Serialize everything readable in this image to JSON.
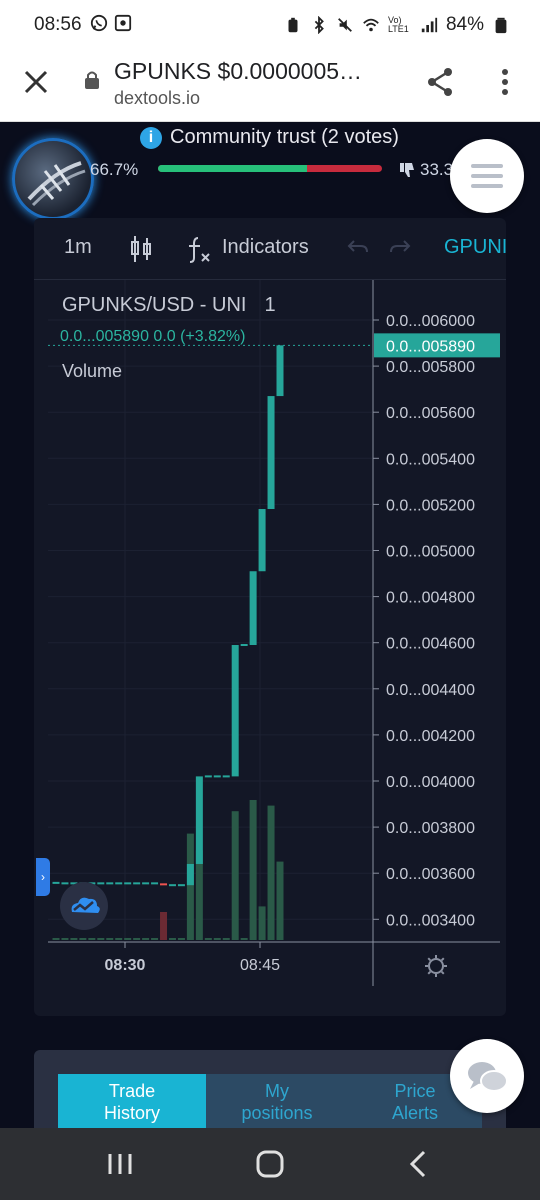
{
  "status_bar": {
    "time": "08:56",
    "battery": "84%",
    "left_icons": [
      "whatsapp-icon",
      "app-square-icon"
    ],
    "right_icons": [
      "notification-icon",
      "bluetooth-icon",
      "mute-icon",
      "wifi-icon",
      "volte-icon",
      "signal-icon",
      "battery-icon"
    ],
    "volte_label": "Vo) LTE1"
  },
  "browser": {
    "page_title": "GPUNKS $0.0000005…",
    "domain": "dextools.io"
  },
  "community": {
    "title": "Community trust (2 votes)",
    "up_percent": "66.7%",
    "down_percent": "33.3",
    "up_fraction": 0.667
  },
  "toolbar": {
    "interval": "1m",
    "indicators_label": "Indicators",
    "symbol_tab": "GPUNI"
  },
  "chart": {
    "pair_label": "GPUNKS/USD - UNI",
    "interval_label": "1",
    "last_price_line": "0.0...005890  0.0 (+3.82%)",
    "volume_label": "Volume",
    "current_price_tag": "0.0...005890"
  },
  "chart_data": {
    "type": "candlestick",
    "y_axis_ticks": [
      "0.0...006000",
      "0.0...005800",
      "0.0...005600",
      "0.0...005400",
      "0.0...005200",
      "0.0...005000",
      "0.0...004800",
      "0.0...004600",
      "0.0...004400",
      "0.0...004200",
      "0.0...004000",
      "0.0...003800",
      "0.0...003600",
      "0.0...003400"
    ],
    "x_axis_ticks": [
      {
        "label": "08:30",
        "bold": true
      },
      {
        "label": "08:45",
        "bold": false
      }
    ],
    "ylim": [
      3.32e-06,
      6.09e-06
    ],
    "candles": [
      {
        "open": 3.558e-06,
        "close": 3.558e-06,
        "color": "teal",
        "vol": 0.0
      },
      {
        "open": 3.556e-06,
        "close": 3.556e-06,
        "color": "teal",
        "vol": 0.0
      },
      {
        "open": 3.556e-06,
        "close": 3.556e-06,
        "color": "teal",
        "vol": 0.0
      },
      {
        "open": 3.556e-06,
        "close": 3.556e-06,
        "color": "teal",
        "vol": 0.0
      },
      {
        "open": 3.556e-06,
        "close": 3.556e-06,
        "color": "teal",
        "vol": 0.0
      },
      {
        "open": 3.556e-06,
        "close": 3.556e-06,
        "color": "teal",
        "vol": 0.0
      },
      {
        "open": 3.556e-06,
        "close": 3.556e-06,
        "color": "teal",
        "vol": 0.0
      },
      {
        "open": 3.556e-06,
        "close": 3.556e-06,
        "color": "teal",
        "vol": 0.0
      },
      {
        "open": 3.556e-06,
        "close": 3.556e-06,
        "color": "teal",
        "vol": 0.0
      },
      {
        "open": 3.556e-06,
        "close": 3.556e-06,
        "color": "teal",
        "vol": 0.0
      },
      {
        "open": 3.556e-06,
        "close": 3.556e-06,
        "color": "teal",
        "vol": 0.0
      },
      {
        "open": 3.556e-06,
        "close": 3.556e-06,
        "color": "teal",
        "vol": 0.0
      },
      {
        "open": 3.556e-06,
        "close": 3.548e-06,
        "color": "red",
        "vol": 0.5
      },
      {
        "open": 3.548e-06,
        "close": 3.548e-06,
        "color": "teal",
        "vol": 0.0
      },
      {
        "open": 3.548e-06,
        "close": 3.548e-06,
        "color": "teal",
        "vol": 0.0
      },
      {
        "open": 3.548e-06,
        "close": 3.64e-06,
        "color": "teal",
        "vol": 1.9
      },
      {
        "open": 3.64e-06,
        "close": 4.02e-06,
        "color": "teal",
        "vol": 1.6
      },
      {
        "open": 4.02e-06,
        "close": 4.02e-06,
        "color": "teal",
        "vol": 0.0
      },
      {
        "open": 4.02e-06,
        "close": 4.02e-06,
        "color": "teal",
        "vol": 0.0
      },
      {
        "open": 4.02e-06,
        "close": 4.02e-06,
        "color": "teal",
        "vol": 0.0
      },
      {
        "open": 4.02e-06,
        "close": 4.59e-06,
        "color": "teal",
        "vol": 2.3
      },
      {
        "open": 4.59e-06,
        "close": 4.59e-06,
        "color": "teal",
        "vol": 0.0
      },
      {
        "open": 4.59e-06,
        "close": 4.91e-06,
        "color": "teal",
        "vol": 2.5
      },
      {
        "open": 4.91e-06,
        "close": 5.18e-06,
        "color": "teal",
        "vol": 0.6
      },
      {
        "open": 5.18e-06,
        "close": 5.67e-06,
        "color": "teal",
        "vol": 2.4
      },
      {
        "open": 5.67e-06,
        "close": 5.89e-06,
        "color": "teal",
        "vol": 1.4
      }
    ]
  },
  "trade_tabs": [
    {
      "label_line1": "Trade",
      "label_line2": "History",
      "active": true
    },
    {
      "label_line1": "My",
      "label_line2": "positions",
      "active": false
    },
    {
      "label_line1": "Price",
      "label_line2": "Alerts",
      "active": false
    }
  ],
  "colors": {
    "teal": "#26a69a",
    "red": "#ef5350",
    "accent_blue": "#19b4d3",
    "price_tag_bg": "#26a69a"
  }
}
